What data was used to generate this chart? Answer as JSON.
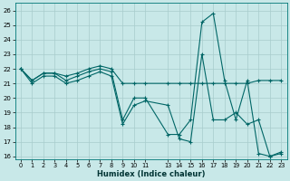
{
  "xlabel": "Humidex (Indice chaleur)",
  "bg_color": "#c8e8e8",
  "grid_color": "#a8cccc",
  "line_color": "#006666",
  "xlim": [
    -0.5,
    23.5
  ],
  "ylim": [
    15.8,
    26.5
  ],
  "xticks": [
    0,
    1,
    2,
    3,
    4,
    5,
    6,
    7,
    8,
    9,
    10,
    11,
    13,
    14,
    15,
    16,
    17,
    18,
    19,
    20,
    21,
    22,
    23
  ],
  "yticks": [
    16,
    17,
    18,
    19,
    20,
    21,
    22,
    23,
    24,
    25,
    26
  ],
  "line_a_x": [
    0,
    1,
    2,
    3,
    4,
    5,
    6,
    7,
    8,
    9,
    10,
    11,
    13,
    14,
    15,
    16,
    17,
    18,
    19,
    20,
    21,
    22,
    23
  ],
  "line_a_y": [
    22.0,
    21.2,
    21.7,
    21.7,
    21.5,
    21.7,
    22.0,
    22.2,
    22.0,
    21.0,
    21.0,
    21.0,
    21.0,
    21.0,
    21.0,
    21.0,
    21.0,
    21.0,
    21.0,
    21.0,
    21.2,
    21.2,
    21.2
  ],
  "line_b_x": [
    0,
    1,
    2,
    3,
    4,
    5,
    6,
    7,
    8,
    9,
    10,
    11,
    13,
    14,
    15,
    16,
    17,
    18,
    19,
    20,
    21,
    22,
    23
  ],
  "line_b_y": [
    22.0,
    21.2,
    21.7,
    21.7,
    21.2,
    21.5,
    21.8,
    22.0,
    21.8,
    18.5,
    20.0,
    20.0,
    17.5,
    17.5,
    18.5,
    25.2,
    25.8,
    21.2,
    18.5,
    21.2,
    16.2,
    16.0,
    16.3
  ],
  "line_c_x": [
    0,
    1,
    2,
    3,
    4,
    5,
    6,
    7,
    8,
    9,
    10,
    11,
    13,
    14,
    15,
    16,
    17,
    18,
    19,
    20,
    21,
    22,
    23
  ],
  "line_c_y": [
    22.0,
    21.0,
    21.5,
    21.5,
    21.0,
    21.2,
    21.5,
    21.8,
    21.5,
    18.2,
    19.5,
    19.8,
    19.5,
    17.2,
    17.0,
    23.0,
    18.5,
    18.5,
    19.0,
    18.2,
    18.5,
    16.0,
    16.2
  ]
}
